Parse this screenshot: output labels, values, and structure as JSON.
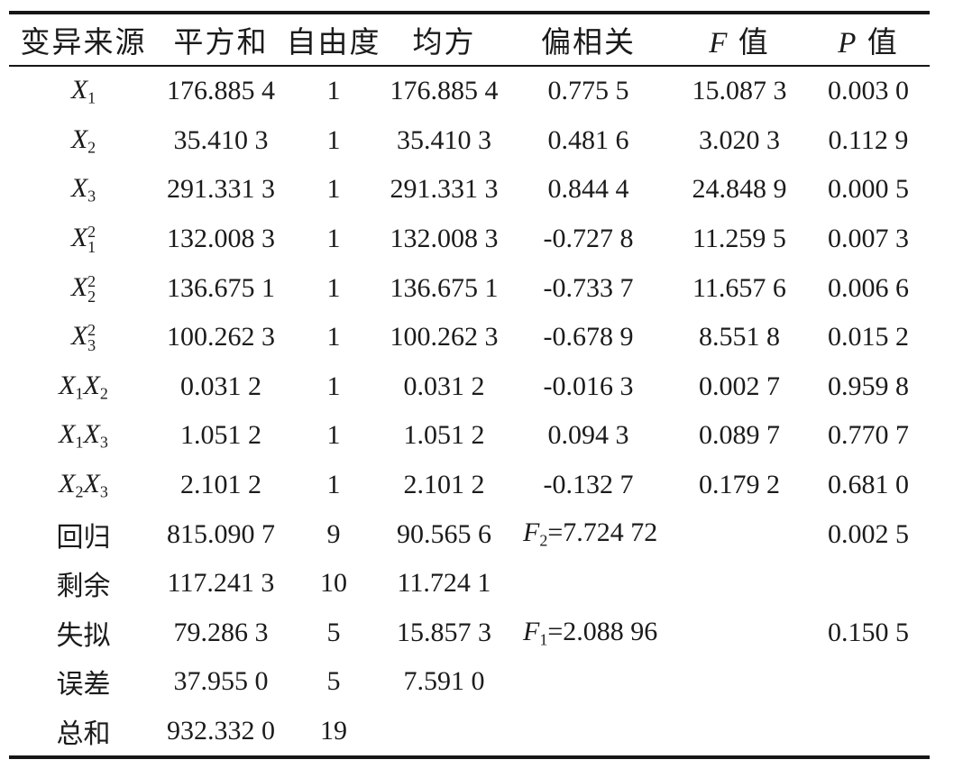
{
  "table": {
    "columns": [
      [
        {
          "t": "变异来源"
        }
      ],
      [
        {
          "t": "平方和"
        }
      ],
      [
        {
          "t": "自由度"
        }
      ],
      [
        {
          "t": "均方"
        }
      ],
      [
        {
          "t": "偏相关"
        }
      ],
      [
        {
          "i": "F"
        },
        {
          "t": " 值"
        }
      ],
      [
        {
          "i": "P"
        },
        {
          "t": " 值"
        }
      ]
    ],
    "column_keys": [
      "source",
      "sum-of-squares",
      "degrees-of-freedom",
      "mean-square",
      "partial-correlation",
      "f-value",
      "p-value"
    ],
    "rows": [
      {
        "cells": [
          [
            {
              "i": "X",
              "sub": "1"
            }
          ],
          "176.885 4",
          "1",
          "176.885 4",
          "0.775 5",
          "15.087 3",
          "0.003 0"
        ]
      },
      {
        "cells": [
          [
            {
              "i": "X",
              "sub": "2"
            }
          ],
          "35.410 3",
          "1",
          "35.410 3",
          "0.481 6",
          "3.020 3",
          "0.112 9"
        ]
      },
      {
        "cells": [
          [
            {
              "i": "X",
              "sub": "3"
            }
          ],
          "291.331 3",
          "1",
          "291.331 3",
          "0.844 4",
          "24.848 9",
          "0.000 5"
        ]
      },
      {
        "cells": [
          [
            {
              "i": "X",
              "sub": "1",
              "sup": "2"
            }
          ],
          "132.008 3",
          "1",
          "132.008 3",
          "-0.727 8",
          "11.259 5",
          "0.007 3"
        ]
      },
      {
        "cells": [
          [
            {
              "i": "X",
              "sub": "2",
              "sup": "2"
            }
          ],
          "136.675 1",
          "1",
          "136.675 1",
          "-0.733 7",
          "11.657 6",
          "0.006 6"
        ]
      },
      {
        "cells": [
          [
            {
              "i": "X",
              "sub": "3",
              "sup": "2"
            }
          ],
          "100.262 3",
          "1",
          "100.262 3",
          "-0.678 9",
          "8.551 8",
          "0.015 2"
        ]
      },
      {
        "cells": [
          [
            {
              "i": "X",
              "sub": "1"
            },
            {
              "i": "X",
              "sub": "2"
            }
          ],
          "0.031 2",
          "1",
          "0.031 2",
          "-0.016 3",
          "0.002 7",
          "0.959 8"
        ]
      },
      {
        "cells": [
          [
            {
              "i": "X",
              "sub": "1"
            },
            {
              "i": "X",
              "sub": "3"
            }
          ],
          "1.051 2",
          "1",
          "1.051 2",
          "0.094 3",
          "0.089 7",
          "0.770 7"
        ]
      },
      {
        "cells": [
          [
            {
              "i": "X",
              "sub": "2"
            },
            {
              "i": "X",
              "sub": "3"
            }
          ],
          "2.101 2",
          "1",
          "2.101 2",
          "-0.132 7",
          "0.179 2",
          "0.681 0"
        ]
      },
      {
        "cells": [
          "回归",
          "815.090 7",
          "9",
          "90.565 6",
          {
            "segs": [
              {
                "i": "F",
                "sub": "2"
              },
              {
                "t": "=7.724 72"
              }
            ],
            "colspan": 2,
            "align": "left"
          },
          "0.002 5"
        ]
      },
      {
        "cells": [
          "剩余",
          "117.241 3",
          "10",
          "11.724 1",
          "",
          "",
          ""
        ]
      },
      {
        "cells": [
          "失拟",
          "79.286 3",
          "5",
          "15.857 3",
          {
            "segs": [
              {
                "i": "F",
                "sub": "1"
              },
              {
                "t": "=2.088 96"
              }
            ],
            "colspan": 2,
            "align": "left"
          },
          "0.150 5"
        ]
      },
      {
        "cells": [
          "误差",
          "37.955 0",
          "5",
          "7.591 0",
          "",
          "",
          ""
        ]
      },
      {
        "cells": [
          "总和",
          "932.332 0",
          "19",
          "",
          "",
          "",
          ""
        ]
      }
    ]
  }
}
